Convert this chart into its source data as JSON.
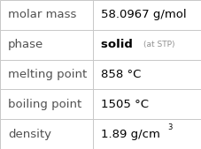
{
  "rows": [
    {
      "label": "molar mass",
      "value": "58.0967 g/mol",
      "value_extra": null,
      "superscript": null
    },
    {
      "label": "phase",
      "value": "solid",
      "value_extra": "(at STP)",
      "superscript": null
    },
    {
      "label": "melting point",
      "value": "858 °C",
      "value_extra": null,
      "superscript": null
    },
    {
      "label": "boiling point",
      "value": "1505 °C",
      "value_extra": null,
      "superscript": null
    },
    {
      "label": "density",
      "value": "1.89 g/cm",
      "value_extra": null,
      "superscript": "3"
    }
  ],
  "col_split": 0.46,
  "background_color": "#ffffff",
  "border_color": "#c8c8c8",
  "label_fontsize": 9.5,
  "value_fontsize": 9.5,
  "extra_fontsize": 6.5,
  "super_fontsize": 6,
  "label_color": "#505050",
  "value_color": "#000000",
  "extra_color": "#909090"
}
